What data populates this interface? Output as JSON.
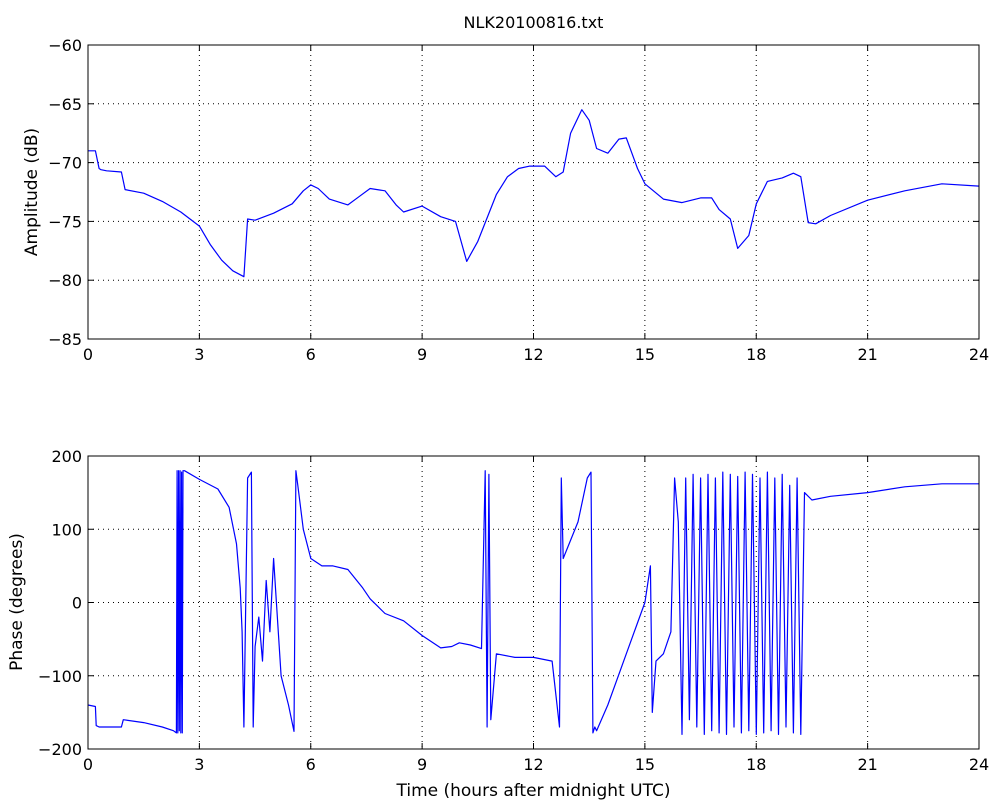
{
  "figure": {
    "title": "NLK20100816.txt",
    "xlabel": "Time (hours after midnight UTC)"
  },
  "chart_data": [
    {
      "type": "line",
      "title": "NLK20100816.txt",
      "xlabel": "",
      "ylabel": "Amplitude (dB)",
      "xlim": [
        0,
        24
      ],
      "ylim": [
        -85,
        -60
      ],
      "xticks": [
        0,
        3,
        6,
        9,
        12,
        15,
        18,
        21,
        24
      ],
      "yticks": [
        -85,
        -80,
        -75,
        -70,
        -65,
        -60
      ],
      "grid": true,
      "line_color": "#0000ff",
      "series": [
        {
          "x": [
            0,
            0.2,
            0.3,
            0.35,
            0.5,
            0.9,
            1.0,
            1.5,
            2.0,
            2.5,
            3.0,
            3.3,
            3.6,
            3.9,
            4.2,
            4.3,
            4.5,
            5.0,
            5.5,
            5.8,
            6.0,
            6.2,
            6.5,
            7.0,
            7.3,
            7.6,
            8.0,
            8.3,
            8.5,
            9.0,
            9.5,
            9.9,
            10.2,
            10.5,
            11.0,
            11.3,
            11.6,
            11.9,
            12.3,
            12.6,
            12.8,
            13.0,
            13.3,
            13.5,
            13.7,
            14.0,
            14.3,
            14.5,
            14.8,
            15.0,
            15.5,
            16.0,
            16.5,
            16.8,
            17.0,
            17.3,
            17.5,
            17.8,
            18.0,
            18.3,
            18.7,
            19.0,
            19.2,
            19.4,
            19.6,
            20.0,
            21.0,
            22.0,
            23.0,
            24.0
          ],
          "values": [
            -69,
            -69,
            -70.5,
            -70.6,
            -70.7,
            -70.8,
            -72.3,
            -72.6,
            -73.3,
            -74.2,
            -75.4,
            -77,
            -78.3,
            -79.2,
            -79.7,
            -74.8,
            -74.9,
            -74.3,
            -73.5,
            -72.4,
            -71.9,
            -72.2,
            -73.1,
            -73.6,
            -72.9,
            -72.2,
            -72.4,
            -73.6,
            -74.2,
            -73.7,
            -74.6,
            -75.0,
            -78.4,
            -76.7,
            -72.7,
            -71.2,
            -70.5,
            -70.3,
            -70.3,
            -71.2,
            -70.8,
            -67.5,
            -65.5,
            -66.4,
            -68.8,
            -69.2,
            -68.0,
            -67.9,
            -70.5,
            -71.8,
            -73.1,
            -73.4,
            -73.0,
            -73.0,
            -74.0,
            -74.8,
            -77.3,
            -76.2,
            -73.5,
            -71.6,
            -71.3,
            -70.9,
            -71.2,
            -75.1,
            -75.2,
            -74.5,
            -73.2,
            -72.4,
            -71.8,
            -72.0
          ]
        }
      ]
    },
    {
      "type": "line",
      "title": "",
      "xlabel": "Time (hours after midnight UTC)",
      "ylabel": "Phase (degrees)",
      "xlim": [
        0,
        24
      ],
      "ylim": [
        -200,
        200
      ],
      "xticks": [
        0,
        3,
        6,
        9,
        12,
        15,
        18,
        21,
        24
      ],
      "yticks": [
        -200,
        -100,
        0,
        100,
        200
      ],
      "grid": true,
      "line_color": "#0000ff",
      "series": [
        {
          "x": [
            0,
            0.2,
            0.22,
            0.3,
            0.9,
            0.95,
            1.5,
            2.0,
            2.3,
            2.38,
            2.4,
            2.42,
            2.44,
            2.46,
            2.48,
            2.5,
            2.52,
            2.54,
            2.56,
            2.6,
            3.0,
            3.5,
            3.8,
            4.0,
            4.1,
            4.15,
            4.2,
            4.3,
            4.4,
            4.45,
            4.5,
            4.6,
            4.7,
            4.8,
            4.9,
            5.0,
            5.2,
            5.4,
            5.55,
            5.6,
            5.65,
            5.8,
            6.0,
            6.3,
            6.6,
            7.0,
            7.4,
            7.6,
            7.8,
            8.0,
            8.5,
            9.0,
            9.5,
            9.8,
            10.0,
            10.3,
            10.6,
            10.7,
            10.75,
            10.8,
            10.85,
            11.0,
            11.5,
            12.0,
            12.5,
            12.7,
            12.75,
            12.8,
            13.2,
            13.45,
            13.55,
            13.6,
            13.65,
            13.7,
            14.0,
            14.5,
            15.0,
            15.15,
            15.2,
            15.3,
            15.5,
            15.7,
            15.8,
            15.9,
            16.0,
            16.1,
            16.2,
            16.3,
            16.4,
            16.5,
            16.6,
            16.7,
            16.8,
            16.9,
            17.0,
            17.1,
            17.2,
            17.3,
            17.4,
            17.5,
            17.6,
            17.7,
            17.8,
            17.9,
            18.0,
            18.1,
            18.2,
            18.3,
            18.4,
            18.5,
            18.6,
            18.7,
            18.8,
            18.9,
            19.0,
            19.1,
            19.2,
            19.3,
            19.5,
            20.0,
            21.0,
            22.0,
            23.0,
            24.0
          ],
          "values": [
            -140,
            -142,
            -168,
            -170,
            -170,
            -160,
            -164,
            -170,
            -175,
            -178,
            180,
            -178,
            180,
            -175,
            180,
            -178,
            178,
            -178,
            180,
            180,
            168,
            155,
            130,
            80,
            20,
            -40,
            -170,
            170,
            178,
            -170,
            -60,
            -20,
            -80,
            30,
            -40,
            60,
            -100,
            -140,
            -176,
            180,
            160,
            100,
            60,
            50,
            50,
            45,
            20,
            5,
            -5,
            -15,
            -25,
            -45,
            -62,
            -60,
            -55,
            -58,
            -63,
            180,
            -170,
            175,
            -160,
            -70,
            -75,
            -75,
            -80,
            -170,
            170,
            60,
            110,
            170,
            178,
            -178,
            -170,
            -175,
            -140,
            -70,
            0,
            50,
            -150,
            -80,
            -70,
            -40,
            170,
            110,
            -180,
            170,
            -160,
            175,
            -170,
            170,
            -180,
            175,
            -175,
            170,
            -178,
            178,
            -180,
            175,
            -170,
            172,
            -178,
            178,
            -175,
            175,
            -180,
            170,
            -178,
            178,
            -175,
            170,
            -180,
            175,
            -170,
            160,
            -178,
            170,
            -180,
            150,
            140,
            145,
            150,
            158,
            162,
            162
          ]
        }
      ]
    }
  ]
}
